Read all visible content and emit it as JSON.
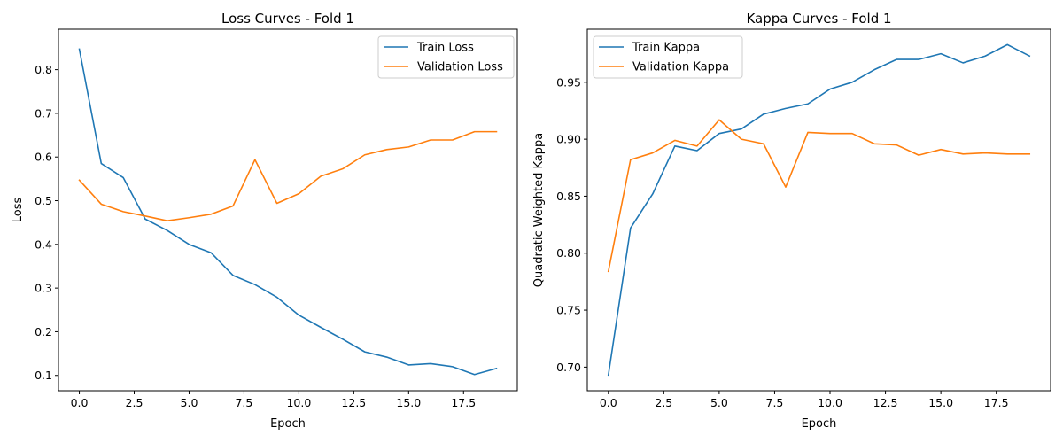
{
  "chart_data": [
    {
      "type": "line",
      "title": "Loss Curves - Fold 1",
      "xlabel": "Epoch",
      "ylabel": "Loss",
      "x": [
        0,
        1,
        2,
        3,
        4,
        5,
        6,
        7,
        8,
        9,
        10,
        11,
        12,
        13,
        14,
        15,
        16,
        17,
        18,
        19
      ],
      "xlim": [
        -0.95,
        19.95
      ],
      "ylim": [
        0.065,
        0.8925
      ],
      "xticks": [
        0,
        2.5,
        5,
        7.5,
        10,
        12.5,
        15,
        17.5
      ],
      "xtick_labels": [
        "0.0",
        "2.5",
        "5.0",
        "7.5",
        "10.0",
        "12.5",
        "15.0",
        "17.5"
      ],
      "yticks": [
        0.1,
        0.2,
        0.3,
        0.4,
        0.5,
        0.6,
        0.7,
        0.8
      ],
      "ytick_labels": [
        "0.1",
        "0.2",
        "0.3",
        "0.4",
        "0.5",
        "0.6",
        "0.7",
        "0.8"
      ],
      "legend": "upper right",
      "grid": false,
      "series": [
        {
          "name": "Train Loss",
          "color": "#1f77b4",
          "values": [
            0.847,
            0.585,
            0.553,
            0.458,
            0.432,
            0.4,
            0.381,
            0.329,
            0.308,
            0.279,
            0.238,
            0.21,
            0.183,
            0.154,
            0.142,
            0.124,
            0.127,
            0.12,
            0.102,
            0.116
          ]
        },
        {
          "name": "Validation Loss",
          "color": "#ff7f0e",
          "values": [
            0.547,
            0.492,
            0.475,
            0.465,
            0.454,
            0.461,
            0.469,
            0.488,
            0.594,
            0.494,
            0.516,
            0.556,
            0.573,
            0.605,
            0.617,
            0.623,
            0.639,
            0.639,
            0.658,
            0.658
          ]
        }
      ]
    },
    {
      "type": "line",
      "title": "Kappa Curves - Fold 1",
      "xlabel": "Epoch",
      "ylabel": "Quadratic Weighted Kappa",
      "x": [
        0,
        1,
        2,
        3,
        4,
        5,
        6,
        7,
        8,
        9,
        10,
        11,
        12,
        13,
        14,
        15,
        16,
        17,
        18,
        19
      ],
      "xlim": [
        -0.95,
        19.95
      ],
      "ylim": [
        0.6793,
        0.9965
      ],
      "xticks": [
        0,
        2.5,
        5,
        7.5,
        10,
        12.5,
        15,
        17.5
      ],
      "xtick_labels": [
        "0.0",
        "2.5",
        "5.0",
        "7.5",
        "10.0",
        "12.5",
        "15.0",
        "17.5"
      ],
      "yticks": [
        0.7,
        0.75,
        0.8,
        0.85,
        0.9,
        0.95
      ],
      "ytick_labels": [
        "0.70",
        "0.75",
        "0.80",
        "0.85",
        "0.90",
        "0.95"
      ],
      "legend": "upper left",
      "grid": false,
      "series": [
        {
          "name": "Train Kappa",
          "color": "#1f77b4",
          "values": [
            0.693,
            0.822,
            0.852,
            0.894,
            0.89,
            0.905,
            0.909,
            0.922,
            0.927,
            0.931,
            0.944,
            0.95,
            0.961,
            0.97,
            0.97,
            0.975,
            0.967,
            0.973,
            0.983,
            0.973
          ]
        },
        {
          "name": "Validation Kappa",
          "color": "#ff7f0e",
          "values": [
            0.784,
            0.882,
            0.888,
            0.899,
            0.894,
            0.917,
            0.9,
            0.896,
            0.858,
            0.906,
            0.905,
            0.905,
            0.896,
            0.895,
            0.886,
            0.891,
            0.887,
            0.888,
            0.887,
            0.887
          ]
        }
      ]
    }
  ]
}
